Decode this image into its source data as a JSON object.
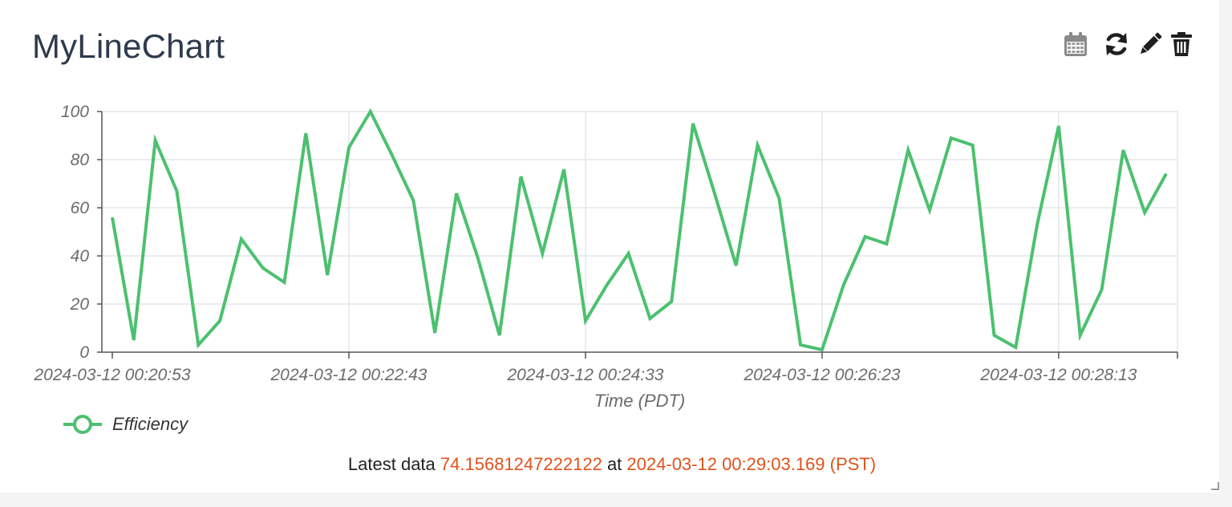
{
  "title": "MyLineChart",
  "toolbar": {
    "icons": [
      "calendar-icon",
      "refresh-icon",
      "pencil-icon",
      "trash-icon"
    ]
  },
  "colors": {
    "series": "#4cc06f",
    "highlight": "#e0531c",
    "title": "#2e3a4d"
  },
  "chart_data": {
    "type": "line",
    "title": "",
    "xlabel": "Time (PDT)",
    "ylabel": "",
    "ylim": [
      0,
      100
    ],
    "yticks": [
      0,
      20,
      40,
      60,
      80,
      100
    ],
    "x_start": "2024-03-12 00:20:53",
    "x_end": "2024-03-12 00:29:03",
    "xticks": [
      "2024-03-12 00:20:53",
      "2024-03-12 00:22:43",
      "2024-03-12 00:24:33",
      "2024-03-12 00:26:23",
      "2024-03-12 00:28:13"
    ],
    "grid": true,
    "legend_position": "bottom-left",
    "series": [
      {
        "name": "Efficiency",
        "color": "#4cc06f",
        "x": [
          "2024-03-12 00:20:53",
          "2024-03-12 00:21:03",
          "2024-03-12 00:21:13",
          "2024-03-12 00:21:23",
          "2024-03-12 00:21:33",
          "2024-03-12 00:21:43",
          "2024-03-12 00:21:53",
          "2024-03-12 00:22:03",
          "2024-03-12 00:22:13",
          "2024-03-12 00:22:23",
          "2024-03-12 00:22:33",
          "2024-03-12 00:22:43",
          "2024-03-12 00:22:53",
          "2024-03-12 00:23:03",
          "2024-03-12 00:23:13",
          "2024-03-12 00:23:23",
          "2024-03-12 00:23:33",
          "2024-03-12 00:23:43",
          "2024-03-12 00:23:53",
          "2024-03-12 00:24:03",
          "2024-03-12 00:24:13",
          "2024-03-12 00:24:23",
          "2024-03-12 00:24:33",
          "2024-03-12 00:24:43",
          "2024-03-12 00:24:53",
          "2024-03-12 00:25:03",
          "2024-03-12 00:25:13",
          "2024-03-12 00:25:23",
          "2024-03-12 00:25:33",
          "2024-03-12 00:25:43",
          "2024-03-12 00:25:53",
          "2024-03-12 00:26:03",
          "2024-03-12 00:26:13",
          "2024-03-12 00:26:23",
          "2024-03-12 00:26:33",
          "2024-03-12 00:26:43",
          "2024-03-12 00:26:53",
          "2024-03-12 00:27:03",
          "2024-03-12 00:27:13",
          "2024-03-12 00:27:23",
          "2024-03-12 00:27:33",
          "2024-03-12 00:27:43",
          "2024-03-12 00:27:53",
          "2024-03-12 00:28:03",
          "2024-03-12 00:28:13",
          "2024-03-12 00:28:23",
          "2024-03-12 00:28:33",
          "2024-03-12 00:28:43",
          "2024-03-12 00:28:53",
          "2024-03-12 00:29:03"
        ],
        "values": [
          56,
          5,
          88,
          67,
          3,
          13,
          47,
          35,
          29,
          91,
          32,
          85,
          100,
          82,
          63,
          8,
          66,
          39,
          7,
          73,
          41,
          76,
          13,
          28,
          41,
          14,
          21,
          95,
          66,
          36,
          86,
          64,
          3,
          1,
          28,
          48,
          45,
          84,
          59,
          89,
          86,
          7,
          2,
          53,
          94,
          7,
          26,
          84,
          58,
          74.16
        ]
      }
    ]
  },
  "latest": {
    "prefix": "Latest data",
    "value": "74.15681247222122",
    "at": "at",
    "timestamp": "2024-03-12 00:29:03.169 (PST)"
  }
}
